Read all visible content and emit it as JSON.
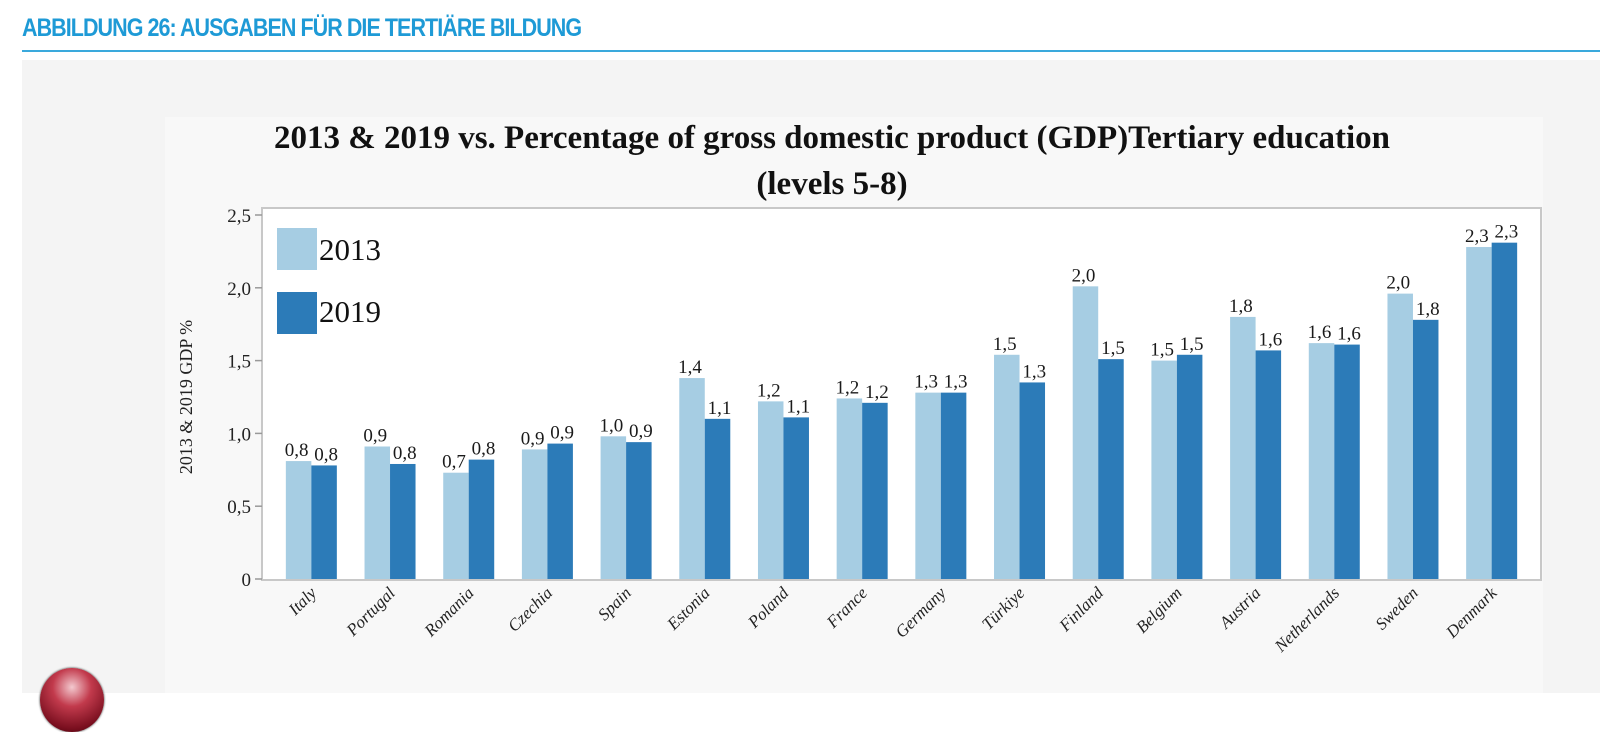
{
  "page": {
    "heading": "ABBILDUNG 26: AUSGABEN FÜR DIE TERTIÄRE BILDUNG"
  },
  "colors": {
    "heading": "#1e9ad6",
    "series_2013": "#a6cde3",
    "series_2019": "#2c7bb8"
  },
  "icons": {
    "bottom_left": "red-sphere-icon"
  },
  "chart_data": {
    "type": "bar",
    "title": "2013 & 2019 vs. Percentage of gross domestic product (GDP)Tertiary education",
    "title_line2": "(levels 5-8)",
    "xlabel": "",
    "ylabel": "2013 & 2019 GDP %",
    "ylim": [
      0,
      2.5
    ],
    "yticks": [
      0,
      0.5,
      1.0,
      1.5,
      2.0,
      2.5
    ],
    "ytick_labels": [
      "0",
      "0,5",
      "1,0",
      "1,5",
      "2,0",
      "2,5"
    ],
    "grid": false,
    "legend_position": "top-left",
    "categories": [
      "Italy",
      "Portugal",
      "Romania",
      "Czechia",
      "Spain",
      "Estonia",
      "Poland",
      "France",
      "Germany",
      "Türkiye",
      "Finland",
      "Belgium",
      "Austria",
      "Netherlands",
      "Sweden",
      "Denmark"
    ],
    "series": [
      {
        "name": "2013",
        "values": [
          0.81,
          0.91,
          0.73,
          0.89,
          0.98,
          1.38,
          1.22,
          1.24,
          1.28,
          1.54,
          2.01,
          1.5,
          1.8,
          1.62,
          1.96,
          2.28
        ],
        "labels": [
          "0,8",
          "0,9",
          "0,7",
          "0,9",
          "1,0",
          "1,4",
          "1,2",
          "1,2",
          "1,3",
          "1,5",
          "2,0",
          "1,5",
          "1,8",
          "1,6",
          "2,0",
          "2,3"
        ]
      },
      {
        "name": "2019",
        "values": [
          0.78,
          0.79,
          0.82,
          0.93,
          0.94,
          1.1,
          1.11,
          1.21,
          1.28,
          1.35,
          1.51,
          1.54,
          1.57,
          1.61,
          1.78,
          2.31
        ],
        "labels": [
          "0,8",
          "0,8",
          "0,8",
          "0,9",
          "0,9",
          "1,1",
          "1,1",
          "1,2",
          "1,3",
          "1,3",
          "1,5",
          "1,5",
          "1,6",
          "1,6",
          "1,8",
          "2,3"
        ]
      }
    ]
  }
}
